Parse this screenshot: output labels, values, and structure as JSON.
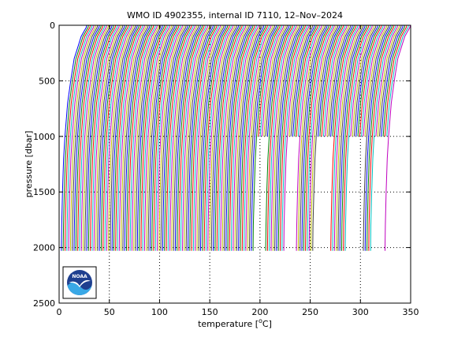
{
  "chart_data": {
    "type": "line",
    "title": "WMO ID 4902355, internal ID 7110, 12–Nov–2024",
    "xlabel": "temperature [°C]",
    "xlabel_main": "temperature [",
    "xlabel_sup": "o",
    "xlabel_end": "C]",
    "ylabel": "pressure [dbar]",
    "xlim": [
      0,
      350
    ],
    "ylim": [
      2500,
      0
    ],
    "y_reversed": true,
    "x_ticks": [
      "0",
      "50",
      "100",
      "150",
      "200",
      "250",
      "300",
      "350"
    ],
    "y_ticks": [
      "0",
      "500",
      "1000",
      "1500",
      "2000",
      "2500"
    ],
    "grid": "dotted",
    "profile_count": 180,
    "profile_offset_step_C": 1.8,
    "profile_shape": {
      "pressure": [
        0,
        20,
        60,
        100,
        200,
        300,
        500,
        700,
        1000,
        1200,
        1500,
        1800,
        2000,
        2030
      ],
      "temperature_base": [
        27.5,
        27.0,
        24.5,
        22.0,
        18.5,
        15.0,
        11.5,
        8.5,
        5.8,
        4.5,
        3.4,
        2.6,
        2.3,
        2.3
      ]
    },
    "deep_profile_pressure_max": 2030,
    "shallow_profile_pressure_max": 1000,
    "shallow_profile_ranges": [
      [
        107,
        112
      ],
      [
        124,
        129
      ],
      [
        140,
        148
      ],
      [
        158,
        166
      ],
      [
        172,
        178
      ]
    ],
    "line_colors": [
      "#0000ff",
      "#008000",
      "#ff0000",
      "#00bfbf",
      "#bf00bf",
      "#bfbf00",
      "#404040"
    ],
    "logo": {
      "label": "NOAA",
      "colors": {
        "sky": "#1e3f8f",
        "sea": "#39a8e6",
        "bird": "#ffffff"
      }
    }
  }
}
